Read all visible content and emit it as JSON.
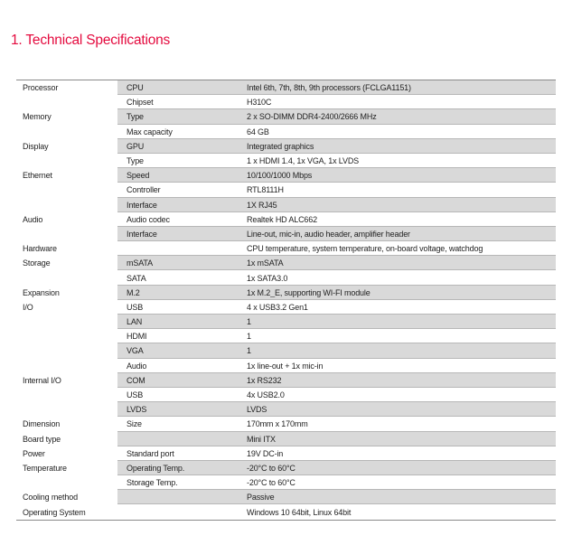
{
  "page": {
    "title": "1. Technical Specifications"
  },
  "colors": {
    "accent_red": "#e40a3e",
    "row_shade": "#d9d9d9",
    "table_border": "#8a8a8a",
    "row_separator": "#b7b7b7",
    "text": "#1f1f1f"
  },
  "table": {
    "rows": [
      {
        "category": "Processor",
        "item": "CPU",
        "value": "Intel 6th, 7th, 8th, 9th processors (FCLGA1151)"
      },
      {
        "category": "",
        "item": "Chipset",
        "value": "H310C"
      },
      {
        "category": "Memory",
        "item": "Type",
        "value": "2 x SO-DIMM DDR4-2400/2666 MHz"
      },
      {
        "category": "",
        "item": "Max capacity",
        "value": "64 GB"
      },
      {
        "category": "Display",
        "item": "GPU",
        "value": "Integrated graphics"
      },
      {
        "category": "",
        "item": "Type",
        "value": "1 x HDMI 1.4, 1x VGA, 1x LVDS"
      },
      {
        "category": "Ethernet",
        "item": "Speed",
        "value": "10/100/1000 Mbps"
      },
      {
        "category": "",
        "item": "Controller",
        "value": "RTL8111H"
      },
      {
        "category": "",
        "item": "Interface",
        "value": "1X RJ45"
      },
      {
        "category": "Audio",
        "item": "Audio codec",
        "value": "Realtek HD ALC662"
      },
      {
        "category": "",
        "item": "Interface",
        "value": "Line-out, mic-in, audio header, amplifier header"
      },
      {
        "category": "Hardware",
        "item": "",
        "value": "CPU temperature, system temperature, on-board voltage, watchdog"
      },
      {
        "category": "Storage",
        "item": "mSATA",
        "value": "1x mSATA"
      },
      {
        "category": "",
        "item": "SATA",
        "value": "1x SATA3.0"
      },
      {
        "category": "Expansion",
        "item": "M.2",
        "value": "1x M.2_E, supporting WI-FI module"
      },
      {
        "category": "I/O",
        "item": "USB",
        "value": "4 x USB3.2 Gen1"
      },
      {
        "category": "",
        "item": "LAN",
        "value": "1"
      },
      {
        "category": "",
        "item": "HDMI",
        "value": "1"
      },
      {
        "category": "",
        "item": "VGA",
        "value": "1"
      },
      {
        "category": "",
        "item": "Audio",
        "value": "1x line-out + 1x mic-in"
      },
      {
        "category": "Internal I/O",
        "item": "COM",
        "value": "1x RS232"
      },
      {
        "category": "",
        "item": "USB",
        "value": "4x USB2.0"
      },
      {
        "category": "",
        "item": "LVDS",
        "value": "LVDS"
      },
      {
        "category": "Dimension",
        "item": "Size",
        "value": "170mm x 170mm"
      },
      {
        "category": "Board type",
        "item": "",
        "value": "Mini ITX"
      },
      {
        "category": "Power",
        "item": "Standard port",
        "value": "19V DC-in"
      },
      {
        "category": "Temperature",
        "item": "Operating Temp.",
        "value": "-20°C to 60°C"
      },
      {
        "category": "",
        "item": "Storage Temp.",
        "value": "-20°C to 60°C"
      },
      {
        "category": "Cooling method",
        "item": "",
        "value": "Passive"
      },
      {
        "category": "Operating System",
        "item": "",
        "value": "Windows 10 64bit, Linux 64bit"
      }
    ]
  }
}
